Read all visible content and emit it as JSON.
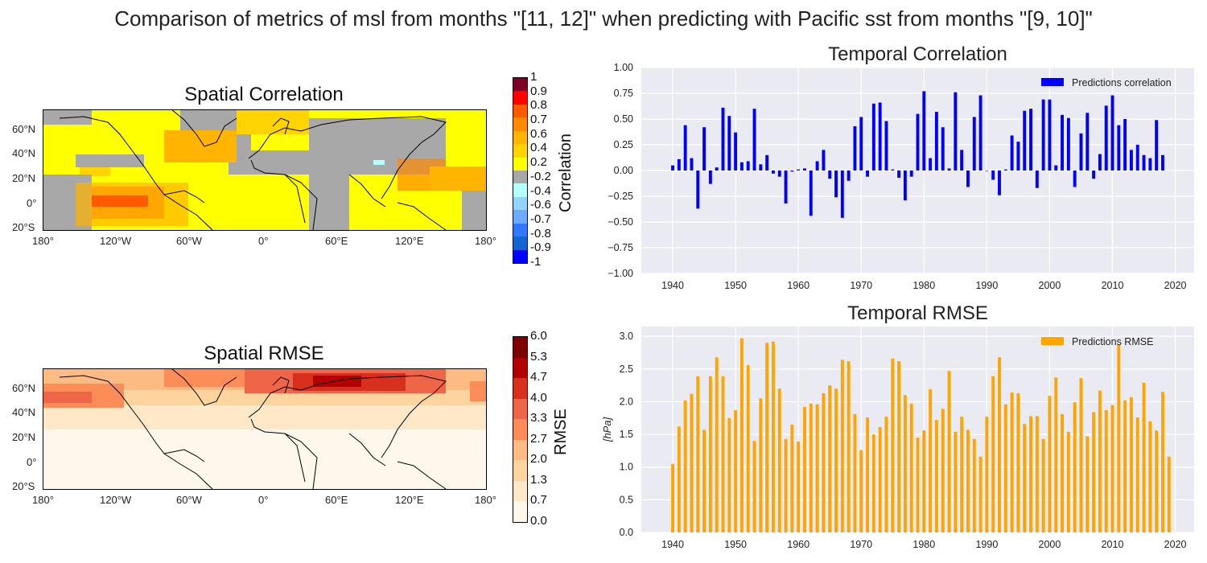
{
  "figure": {
    "suptitle": "Comparison of metrics of msl from months \"[11, 12]\"  when predicting with Pacific sst from months \"[9, 10]\""
  },
  "spatial_maps": [
    {
      "title": "Spatial Correlation",
      "colorbar_label": "Correlation",
      "colorbar_ticks": [
        "1",
        "0.9",
        "0.8",
        "0.7",
        "0.6",
        "0.4",
        "0.2",
        "-0.2",
        "-0.4",
        "-0.6",
        "-0.7",
        "-0.8",
        "-0.9",
        "-1"
      ],
      "colorbar_colors": [
        "#7b0023",
        "#ff0000",
        "#ff5a00",
        "#ff8a00",
        "#ffb400",
        "#ffd400",
        "#ffff00",
        "#a8a8a8",
        "#b4ffff",
        "#96d2ff",
        "#6eaaff",
        "#3278ff",
        "#1464d2",
        "#0000ff"
      ],
      "lon_ticks": [
        "180°",
        "120°W",
        "60°W",
        "0°",
        "60°E",
        "120°E",
        "180°"
      ],
      "lat_ticks": [
        "60°N",
        "40°N",
        "20°N",
        "0°",
        "20°S"
      ]
    },
    {
      "title": "Spatial RMSE",
      "colorbar_label": "RMSE",
      "colorbar_ticks": [
        "6.0",
        "5.3",
        "4.7",
        "4.0",
        "3.3",
        "2.7",
        "2.0",
        "1.3",
        "0.7",
        "0.0"
      ],
      "colorbar_colors": [
        "#7f0000",
        "#b30000",
        "#d7301f",
        "#ef6548",
        "#fc8d59",
        "#fdbb84",
        "#fdd49e",
        "#fee8c8",
        "#fff7ec"
      ],
      "lon_ticks": [
        "180°",
        "120°W",
        "60°W",
        "0°",
        "60°E",
        "120°E",
        "180°"
      ],
      "lat_ticks": [
        "60°N",
        "40°N",
        "20°N",
        "0°",
        "20°S"
      ]
    }
  ],
  "chart_data": [
    {
      "type": "bar",
      "title": "Temporal Correlation",
      "xlabel": "",
      "ylabel": "",
      "ylim": [
        -1.0,
        1.0
      ],
      "xlim": [
        1935,
        2023
      ],
      "yticks": [
        "1.00",
        "0.75",
        "0.50",
        "0.25",
        "0.00",
        "−0.25",
        "−0.50",
        "−0.75",
        "−1.00"
      ],
      "xticks": [
        "1940",
        "1950",
        "1960",
        "1970",
        "1980",
        "1990",
        "2000",
        "2010",
        "2020"
      ],
      "grid": true,
      "legend_position": "top-right",
      "color": "#0000ff",
      "series": [
        {
          "name": "Predictions correlation",
          "x": [
            1940,
            1941,
            1942,
            1943,
            1944,
            1945,
            1946,
            1947,
            1948,
            1949,
            1950,
            1951,
            1952,
            1953,
            1954,
            1955,
            1956,
            1957,
            1958,
            1959,
            1960,
            1961,
            1962,
            1963,
            1964,
            1965,
            1966,
            1967,
            1968,
            1969,
            1970,
            1971,
            1972,
            1973,
            1974,
            1975,
            1976,
            1977,
            1978,
            1979,
            1980,
            1981,
            1982,
            1983,
            1984,
            1985,
            1986,
            1987,
            1988,
            1989,
            1990,
            1991,
            1992,
            1993,
            1994,
            1995,
            1996,
            1997,
            1998,
            1999,
            2000,
            2001,
            2002,
            2003,
            2004,
            2005,
            2006,
            2007,
            2008,
            2009,
            2010,
            2011,
            2012,
            2013,
            2014,
            2015,
            2016,
            2017,
            2018
          ],
          "values": [
            0.05,
            0.11,
            0.44,
            0.12,
            -0.37,
            0.42,
            -0.13,
            0.03,
            0.61,
            0.53,
            0.37,
            0.08,
            0.09,
            0.6,
            0.06,
            0.15,
            -0.03,
            -0.06,
            -0.32,
            -0.01,
            0.01,
            0.02,
            -0.44,
            0.09,
            0.2,
            -0.08,
            -0.26,
            -0.46,
            -0.1,
            0.43,
            0.52,
            -0.06,
            0.65,
            0.66,
            0.48,
            0.01,
            -0.07,
            -0.29,
            -0.06,
            0.55,
            0.77,
            0.12,
            0.57,
            0.42,
            0.02,
            0.76,
            0.2,
            -0.16,
            0.52,
            0.73,
            0.0,
            -0.09,
            -0.24,
            0.01,
            0.34,
            0.28,
            0.58,
            0.6,
            -0.17,
            0.69,
            0.69,
            0.05,
            0.54,
            0.51,
            -0.16,
            0.36,
            0.56,
            -0.08,
            0.16,
            0.63,
            0.73,
            0.44,
            0.5,
            0.2,
            0.25,
            0.15,
            0.12,
            0.49,
            0.15
          ]
        }
      ]
    },
    {
      "type": "bar",
      "title": "Temporal RMSE",
      "xlabel": "",
      "ylabel": "[hPa]",
      "ylim": [
        0.0,
        3.15
      ],
      "xlim": [
        1935,
        2023
      ],
      "yticks": [
        "3.0",
        "2.5",
        "2.0",
        "1.5",
        "1.0",
        "0.5",
        "0.0"
      ],
      "xticks": [
        "1940",
        "1950",
        "1960",
        "1970",
        "1980",
        "1990",
        "2000",
        "2010",
        "2020"
      ],
      "grid": true,
      "legend_position": "top-right",
      "color": "#ffa500",
      "series": [
        {
          "name": "Predictions RMSE",
          "x": [
            1940,
            1941,
            1942,
            1943,
            1944,
            1945,
            1946,
            1947,
            1948,
            1949,
            1950,
            1951,
            1952,
            1953,
            1954,
            1955,
            1956,
            1957,
            1958,
            1959,
            1960,
            1961,
            1962,
            1963,
            1964,
            1965,
            1966,
            1967,
            1968,
            1969,
            1970,
            1971,
            1972,
            1973,
            1974,
            1975,
            1976,
            1977,
            1978,
            1979,
            1980,
            1981,
            1982,
            1983,
            1984,
            1985,
            1986,
            1987,
            1988,
            1989,
            1990,
            1991,
            1992,
            1993,
            1994,
            1995,
            1996,
            1997,
            1998,
            1999,
            2000,
            2001,
            2002,
            2003,
            2004,
            2005,
            2006,
            2007,
            2008,
            2009,
            2010,
            2011,
            2012,
            2013,
            2014,
            2015,
            2016,
            2017,
            2018,
            2019
          ],
          "values": [
            1.05,
            1.62,
            2.02,
            2.12,
            2.39,
            1.57,
            2.39,
            2.68,
            2.39,
            1.75,
            1.87,
            2.97,
            2.56,
            1.4,
            2.05,
            2.9,
            2.92,
            2.2,
            1.43,
            1.65,
            1.39,
            1.92,
            1.97,
            1.96,
            2.13,
            2.25,
            2.2,
            2.64,
            2.62,
            1.81,
            1.26,
            1.76,
            1.5,
            1.61,
            1.77,
            2.66,
            2.62,
            2.1,
            1.97,
            1.45,
            1.56,
            2.19,
            1.72,
            1.89,
            2.47,
            1.54,
            1.77,
            1.57,
            1.43,
            1.16,
            1.77,
            2.39,
            2.68,
            1.96,
            2.14,
            2.13,
            1.66,
            1.78,
            1.78,
            1.43,
            2.09,
            2.37,
            1.81,
            1.54,
            1.99,
            2.36,
            1.47,
            1.84,
            2.17,
            1.87,
            1.95,
            2.88,
            2.02,
            2.07,
            1.76,
            2.29,
            1.7,
            1.56,
            2.15,
            1.16
          ]
        }
      ]
    }
  ]
}
